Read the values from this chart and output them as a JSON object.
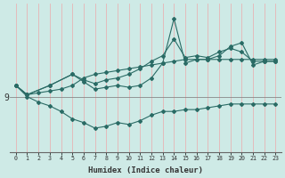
{
  "xlabel": "Humidex (Indice chaleur)",
  "bg_color": "#ceeae6",
  "line_color": "#2a6b65",
  "grid_color": "#e8b4b4",
  "xlim_min": -0.5,
  "xlim_max": 23.5,
  "ylim_min": 7.5,
  "ylim_max": 11.5,
  "ytick_val": 9.0,
  "ytick_label": "9",
  "xticks": [
    0,
    1,
    2,
    3,
    4,
    5,
    6,
    7,
    8,
    9,
    10,
    11,
    12,
    13,
    14,
    15,
    16,
    17,
    18,
    19,
    20,
    21,
    22,
    23
  ],
  "line1_x": [
    0,
    1,
    2,
    3,
    4,
    5,
    6,
    7,
    8,
    9,
    10,
    11,
    12,
    13,
    14,
    15,
    16,
    17,
    18,
    19,
    20,
    21,
    22,
    23
  ],
  "line1_y": [
    9.3,
    9.05,
    9.1,
    9.15,
    9.2,
    9.3,
    9.5,
    9.6,
    9.65,
    9.7,
    9.75,
    9.8,
    9.85,
    9.9,
    9.95,
    10.0,
    10.0,
    10.0,
    10.0,
    10.0,
    10.0,
    10.0,
    10.0,
    10.0
  ],
  "line2_x": [
    0,
    1,
    3,
    5,
    6,
    7,
    8,
    9,
    10,
    11,
    12,
    13,
    14,
    15,
    16,
    17,
    18,
    19,
    20,
    21,
    22,
    23
  ],
  "line2_y": [
    9.3,
    9.05,
    9.3,
    9.6,
    9.45,
    9.35,
    9.45,
    9.5,
    9.6,
    9.75,
    9.95,
    10.1,
    10.55,
    10.05,
    10.1,
    10.05,
    10.2,
    10.3,
    10.2,
    9.95,
    9.95,
    9.95
  ],
  "line3_x": [
    0,
    1,
    3,
    5,
    6,
    7,
    8,
    9,
    10,
    11,
    12,
    13,
    14,
    15,
    16,
    17,
    18,
    19,
    20,
    21,
    22,
    23
  ],
  "line3_y": [
    9.3,
    9.05,
    9.3,
    9.6,
    9.4,
    9.2,
    9.25,
    9.3,
    9.25,
    9.3,
    9.5,
    9.9,
    11.1,
    9.9,
    10.0,
    10.0,
    10.1,
    10.35,
    10.45,
    9.85,
    9.95,
    9.95
  ],
  "line4_x": [
    0,
    1,
    2,
    3,
    4,
    5,
    6,
    7,
    8,
    9,
    10,
    11,
    12,
    13,
    14,
    15,
    16,
    17,
    18,
    19,
    20,
    21,
    22,
    23
  ],
  "line4_y": [
    9.3,
    9.0,
    8.85,
    8.75,
    8.6,
    8.4,
    8.3,
    8.15,
    8.2,
    8.3,
    8.25,
    8.35,
    8.5,
    8.6,
    8.6,
    8.65,
    8.65,
    8.7,
    8.75,
    8.8,
    8.8,
    8.8,
    8.8,
    8.8
  ]
}
